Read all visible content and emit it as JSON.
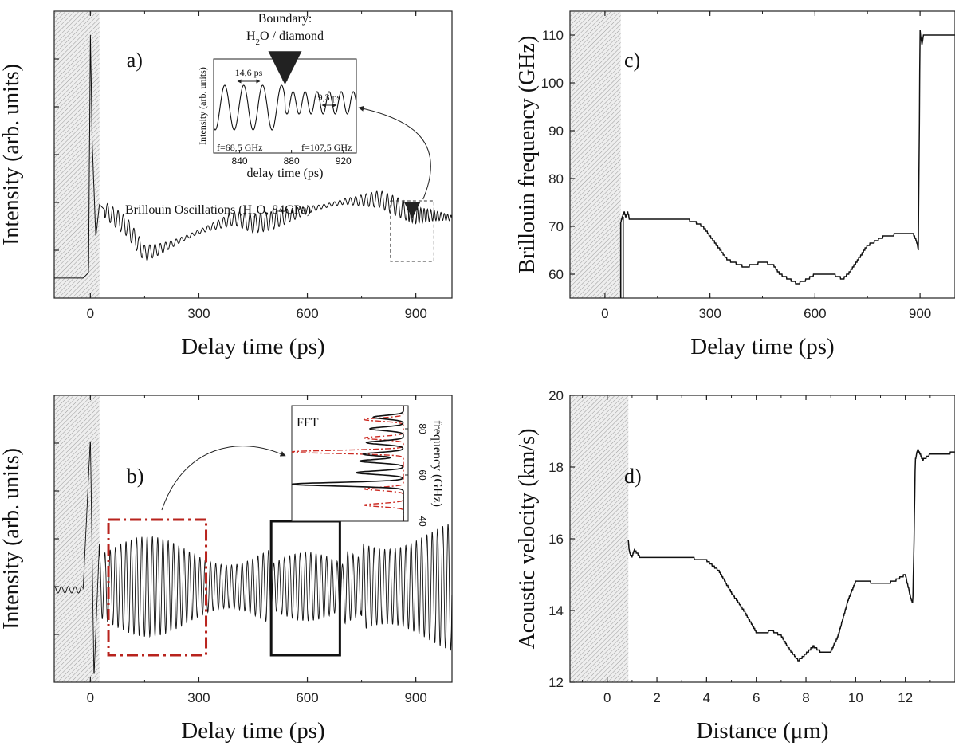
{
  "chart_data": [
    {
      "id": "a",
      "type": "line",
      "panel_label": "a)",
      "xlabel": "Delay time (ps)",
      "ylabel": "Intensity (arb. units)",
      "xlim": [
        -100,
        1000
      ],
      "xticks": [
        0,
        300,
        600,
        900
      ],
      "shaded_region": [
        -100,
        25
      ],
      "series": [
        {
          "x": [
            -100,
            -20,
            -5,
            0,
            5,
            15,
            25,
            40,
            60,
            100,
            150,
            200,
            300,
            400,
            450,
            500,
            600,
            700,
            800,
            850,
            900,
            950,
            1000
          ],
          "y": [
            0.05,
            0.05,
            0.07,
            0.95,
            0.55,
            0.2,
            0.32,
            0.3,
            0.28,
            0.24,
            0.14,
            0.16,
            0.22,
            0.27,
            0.25,
            0.26,
            0.3,
            0.33,
            0.34,
            0.31,
            0.28,
            0.28,
            0.27
          ],
          "osc_amp": 0.035,
          "osc_period_ps": 14.6
        }
      ],
      "annotation": "Brillouin Oscillations (H",
      "annotation_sub": "2",
      "annotation_end": "O, 84GPa)",
      "inset": {
        "title1": "Boundary:",
        "title2": "H",
        "title2_sub": "2",
        "title2_end": "O / diamond",
        "xlabel": "delay time (ps)",
        "ylabel": "Intensity (arb. units)",
        "xlim": [
          820,
          930
        ],
        "xticks": [
          840,
          880,
          920
        ],
        "period_left": "14,6 ps",
        "period_right": "9,3 ps",
        "freq_left": "f=68,5 GHz",
        "freq_right": "f=107,5 GHz",
        "boundary_x": 875
      }
    },
    {
      "id": "b",
      "type": "line",
      "panel_label": "b)",
      "xlabel": "Delay time (ps)",
      "ylabel": "Intensity (arb. units)",
      "xlim": [
        -100,
        1000
      ],
      "xticks": [
        0,
        300,
        600,
        900
      ],
      "shaded_region": [
        -100,
        25
      ],
      "boxes": [
        {
          "x0": 50,
          "x1": 320,
          "style": "red-dashdot"
        },
        {
          "x0": 500,
          "x1": 690,
          "style": "black-solid"
        }
      ],
      "inset": {
        "title": "FFT",
        "ylabel": "frequency (GHz)",
        "yticks": [
          40,
          60,
          80
        ],
        "black_peaks": [
          56,
          61,
          66,
          69,
          74,
          80,
          85
        ],
        "red_peaks": [
          47,
          54,
          70,
          76,
          84
        ]
      }
    },
    {
      "id": "c",
      "type": "line",
      "panel_label": "c)",
      "xlabel": "Delay time (ps)",
      "ylabel": "Brillouin frequency (GHz)",
      "xlim": [
        -100,
        1000
      ],
      "ylim": [
        55,
        115
      ],
      "xticks": [
        0,
        300,
        600,
        900
      ],
      "yticks": [
        60,
        70,
        80,
        90,
        100,
        110
      ],
      "shaded_region": [
        -100,
        45
      ],
      "series": [
        {
          "x": [
            45,
            50,
            55,
            60,
            65,
            70,
            100,
            200,
            250,
            280,
            300,
            350,
            400,
            450,
            480,
            500,
            550,
            580,
            600,
            650,
            680,
            700,
            750,
            800,
            850,
            880,
            890,
            895,
            898,
            900,
            905,
            910,
            920,
            1000
          ],
          "y": [
            71,
            72,
            73,
            72,
            73,
            71.5,
            71.5,
            71.5,
            71.2,
            70,
            68,
            63,
            61.5,
            62.5,
            62,
            60,
            58,
            59,
            60,
            60,
            59,
            60.5,
            66,
            68,
            68.5,
            68.5,
            67,
            65,
            90,
            111,
            108,
            110,
            110,
            110
          ]
        }
      ]
    },
    {
      "id": "d",
      "type": "line",
      "panel_label": "d)",
      "xlabel": "Distance (μm)",
      "ylabel": "Acoustic velocity (km/s)",
      "xlim": [
        -1.5,
        14
      ],
      "ylim": [
        12,
        20
      ],
      "xticks": [
        0,
        2,
        4,
        6,
        8,
        10,
        12
      ],
      "yticks": [
        12,
        14,
        16,
        18,
        20
      ],
      "shaded_region": [
        -1.5,
        0.85
      ],
      "series": [
        {
          "x": [
            0.85,
            0.9,
            1.0,
            1.1,
            1.3,
            2.0,
            3.0,
            3.5,
            4.0,
            4.5,
            5.0,
            5.5,
            6.0,
            6.3,
            6.6,
            7.0,
            7.3,
            7.7,
            8.0,
            8.3,
            8.6,
            9.0,
            9.3,
            9.7,
            10.0,
            10.5,
            11.0,
            11.5,
            12.0,
            12.1,
            12.2,
            12.3,
            12.35,
            12.4,
            12.5,
            12.7,
            13.0,
            14.0
          ],
          "y": [
            15.95,
            15.6,
            15.5,
            15.7,
            15.5,
            15.5,
            15.5,
            15.45,
            15.4,
            15.1,
            14.5,
            14.0,
            13.4,
            13.35,
            13.45,
            13.3,
            12.95,
            12.6,
            12.8,
            13.0,
            12.85,
            12.85,
            13.3,
            14.3,
            14.8,
            14.8,
            14.75,
            14.8,
            15.0,
            14.7,
            14.4,
            14.2,
            16.0,
            18.2,
            18.5,
            18.2,
            18.35,
            18.4
          ]
        }
      ]
    }
  ]
}
